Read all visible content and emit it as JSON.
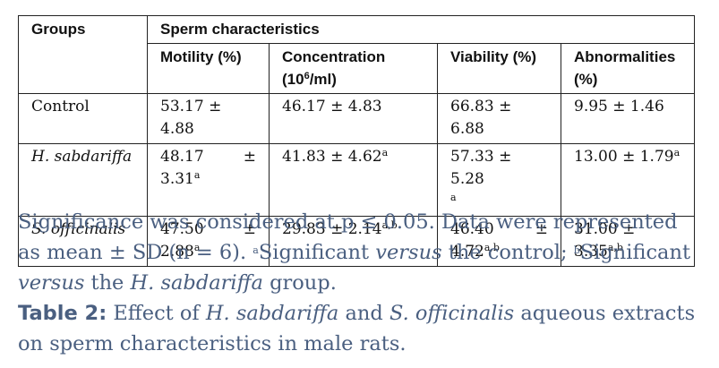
{
  "table": {
    "header": {
      "groups": "Groups",
      "sperm": "Sperm characteristics",
      "motility": "Motility (%)",
      "concentration_pre": "Concentration",
      "concentration_unit_open": "(10",
      "concentration_unit_sup": "6",
      "concentration_unit_close": "/ml)",
      "viability": "Viability (%)",
      "abnormalities_1": "Abnormalities",
      "abnormalities_2": "(%)"
    },
    "rows": [
      {
        "group": "Control",
        "motility": "53.17 ± 4.88",
        "concentration": "46.17 ± 4.83",
        "viability": "66.83 ± 6.88",
        "abnormalities": "9.95 ± 1.46"
      },
      {
        "group": "H. sabdariffa",
        "motility_val": "48.17",
        "motility_pm": "±",
        "motility_sd": "3.31",
        "motility_sup": "a",
        "concentration": "41.83 ± 4.62",
        "concentration_sup": "a",
        "viability": "57.33 ± 5.28",
        "viability_sup": "a",
        "abnormalities": "13.00 ± 1.79",
        "abnormalities_sup": "a"
      },
      {
        "group": "S. officinalis",
        "motility_val": "47.50",
        "motility_pm": "±",
        "motility_sd": "2.88",
        "motility_sup": "a",
        "concentration": "29.83 ± 2.14",
        "concentration_sup": "a,b",
        "viability_val": "46.40",
        "viability_pm": "±",
        "viability_sd": "4.72",
        "viability_sup": "a,b",
        "abnormalities": "31.00 ± 3.35",
        "abnormalities_sup": "a,b"
      }
    ]
  },
  "caption": {
    "note_1": "Significance was considered at p ≤ 0.05. Data were represented as mean ± SD (n = 6). ",
    "sup_a": "a",
    "note_2": "Significant ",
    "versus_1": "versus",
    "note_3": " the control; ",
    "sup_b": "b",
    "note_4": "Significant ",
    "versus_2": "versus",
    "note_5": " the ",
    "h_sab": "H. sabdariffa",
    "note_6": " group.",
    "table_label": "Table 2:",
    "title_1": " Effect of ",
    "title_h": "H. sabdariffa",
    "title_2": " and ",
    "title_s": "S. officinalis",
    "title_3": " aqueous extracts on sperm characteristics in male rats."
  }
}
